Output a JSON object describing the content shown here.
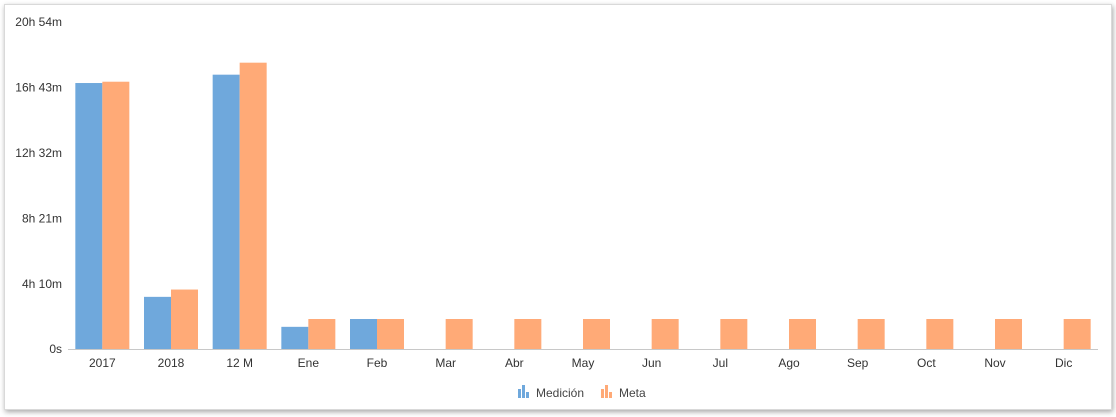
{
  "chart_data": {
    "type": "bar",
    "categories": [
      "2017",
      "2018",
      "12 M",
      "Ene",
      "Feb",
      "Mar",
      "Abr",
      "May",
      "Jun",
      "Jul",
      "Ago",
      "Sep",
      "Oct",
      "Nov",
      "Dic"
    ],
    "series": [
      {
        "name": "Medición",
        "color": "#6fa8dc",
        "values": [
          1020,
          200,
          1052,
          85,
          115,
          null,
          null,
          null,
          null,
          null,
          null,
          null,
          null,
          null,
          null
        ]
      },
      {
        "name": "Meta",
        "color": "#ffaa77",
        "values": [
          1025,
          228,
          1098,
          115,
          115,
          115,
          115,
          115,
          115,
          115,
          115,
          115,
          115,
          115,
          115
        ]
      }
    ],
    "yticks": [
      {
        "value": 0,
        "label": "0s"
      },
      {
        "value": 250,
        "label": "4h 10m"
      },
      {
        "value": 501,
        "label": "8h 21m"
      },
      {
        "value": 752,
        "label": "12h 32m"
      },
      {
        "value": 1003,
        "label": "16h 43m"
      },
      {
        "value": 1254,
        "label": "20h 54m"
      }
    ],
    "ylim": [
      0,
      1254
    ],
    "yunit": "minutes",
    "grid": false,
    "legend": "bottom-center",
    "title": "",
    "xlabel": "",
    "ylabel": ""
  }
}
